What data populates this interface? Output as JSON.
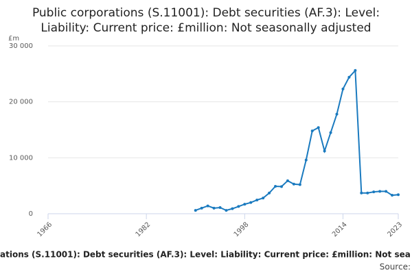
{
  "chart_data": {
    "type": "line",
    "title": [
      "Public corporations (S.11001): Debt securities (AF.3): Level:",
      "Liability: Current price: £million: Not seasonally adjusted"
    ],
    "y_unit": "£m",
    "footer": "ations (S.11001): Debt securities (AF.3): Level: Liability: Current price: £million: Not sea",
    "source": "Source:",
    "x": [
      1990,
      1991,
      1992,
      1993,
      1994,
      1995,
      1996,
      1997,
      1998,
      1999,
      2000,
      2001,
      2002,
      2003,
      2004,
      2005,
      2006,
      2007,
      2008,
      2009,
      2010,
      2011,
      2012,
      2013,
      2014,
      2015,
      2016,
      2017,
      2018,
      2019,
      2020,
      2021,
      2022,
      2023
    ],
    "series": [
      {
        "color": "#1a7abf",
        "values": [
          600,
          1000,
          1400,
          1000,
          1100,
          600,
          900,
          1300,
          1700,
          2000,
          2450,
          2800,
          3700,
          4900,
          4850,
          5900,
          5300,
          5200,
          9600,
          14800,
          15400,
          11200,
          14500,
          17800,
          22300,
          24400,
          25600,
          3700,
          3700,
          3900,
          4000,
          4000,
          3300,
          3400
        ]
      }
    ],
    "xlim": [
      1966,
      2023
    ],
    "xticks": [
      1966,
      1982,
      1998,
      2014,
      2023
    ],
    "ylim": [
      0,
      30000
    ],
    "yticks": [
      0,
      {
        "value": 10000,
        "label": "10 000"
      },
      {
        "value": 20000,
        "label": "20 000"
      },
      {
        "value": 30000,
        "label": "30 000"
      }
    ],
    "grid": true
  }
}
